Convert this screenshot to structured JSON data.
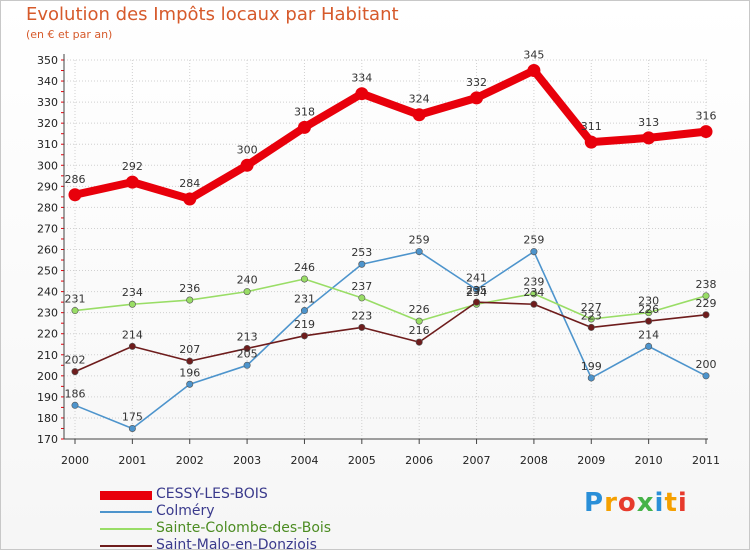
{
  "header": {
    "title": "Evolution des Impôts locaux par Habitant",
    "subtitle": "(en € et par an)"
  },
  "logo": {
    "text": "Proxiti",
    "colors": [
      "#2a8fd8",
      "#f5a000",
      "#e73a2c",
      "#46b348",
      "#2a8fd8",
      "#f5a000",
      "#e73a2c"
    ]
  },
  "chart_data": {
    "type": "line",
    "title": "Evolution des Impôts locaux par Habitant",
    "subtitle": "(en € et par an)",
    "xlabel": "",
    "ylabel": "",
    "x": [
      "2000",
      "2001",
      "2002",
      "2003",
      "2004",
      "2005",
      "2006",
      "2007",
      "2008",
      "2009",
      "2010",
      "2011"
    ],
    "ylim": [
      170,
      350
    ],
    "ytick_step": 10,
    "grid": true,
    "legend_position": "bottom-left",
    "series": [
      {
        "name": "CESSY-LES-BOIS",
        "color": "#e8000b",
        "highlight": true,
        "values": [
          286,
          292,
          284,
          300,
          318,
          334,
          324,
          332,
          345,
          311,
          313,
          316
        ]
      },
      {
        "name": "Colméry",
        "color": "#4d94cc",
        "highlight": false,
        "values": [
          186,
          175,
          196,
          205,
          231,
          253,
          259,
          241,
          259,
          199,
          214,
          200
        ]
      },
      {
        "name": "Sainte-Colombe-des-Bois",
        "color": "#99dd66",
        "highlight": false,
        "values": [
          231,
          234,
          236,
          240,
          246,
          237,
          226,
          234,
          239,
          227,
          230,
          238
        ]
      },
      {
        "name": "Saint-Malo-en-Donziois",
        "color": "#6e1c1c",
        "highlight": false,
        "values": [
          202,
          214,
          207,
          213,
          219,
          223,
          216,
          235,
          234,
          223,
          226,
          229
        ]
      }
    ]
  }
}
